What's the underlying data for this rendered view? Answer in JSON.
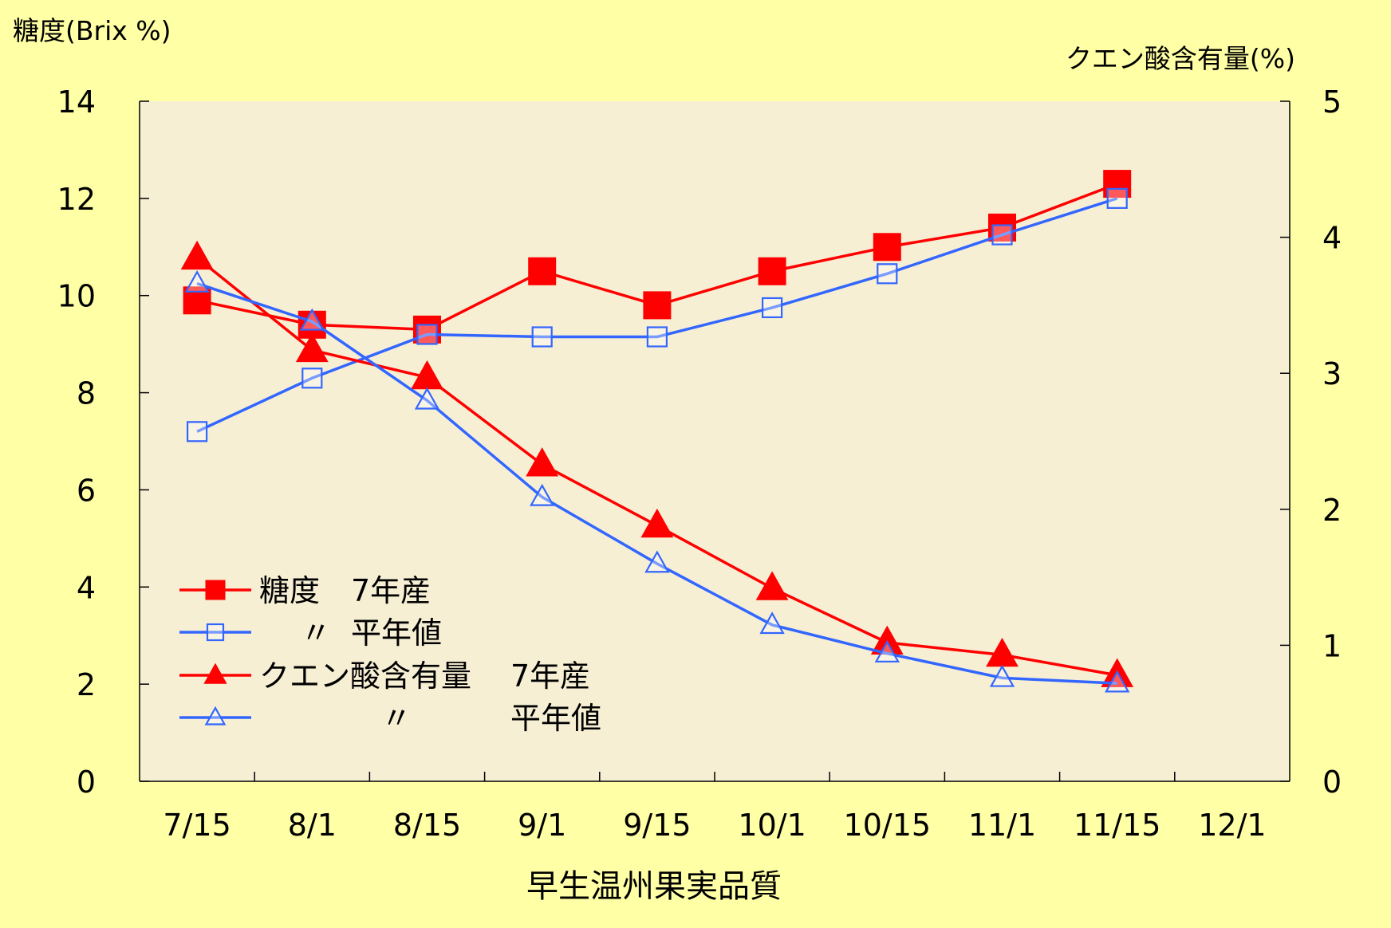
{
  "chart_data": {
    "type": "line",
    "title": "早生温州果実品質",
    "left_axis": {
      "label": "糖度(Brix %)",
      "ticks": [
        "0",
        "2",
        "4",
        "6",
        "8",
        "10",
        "12",
        "14"
      ],
      "ylim": [
        0,
        14
      ]
    },
    "right_axis": {
      "label": "クエン酸含有量(%)",
      "ticks": [
        "0",
        "1",
        "2",
        "3",
        "4",
        "5"
      ],
      "ylim": [
        0,
        5
      ]
    },
    "categories": [
      "7/15",
      "8/1",
      "8/15",
      "9/1",
      "9/15",
      "10/1",
      "10/15",
      "11/1",
      "11/15",
      "12/1"
    ],
    "series": [
      {
        "name": "糖度 7年産",
        "legend": {
          "name": "糖度",
          "suffix": "7年産"
        },
        "axis": "left",
        "marker": "square-filled",
        "color": "#ff0000",
        "values": [
          9.9,
          9.4,
          9.3,
          10.5,
          9.8,
          10.5,
          11.0,
          11.4,
          12.3,
          null
        ]
      },
      {
        "name": "〃 平年値",
        "legend": {
          "name": "〃",
          "suffix": "平年値"
        },
        "axis": "left",
        "marker": "square-open",
        "color": "#3366ff",
        "values": [
          7.2,
          8.3,
          9.2,
          9.15,
          9.15,
          9.75,
          10.45,
          11.25,
          12.0,
          null
        ]
      },
      {
        "name": "クエン酸含有量 7年産",
        "legend": {
          "name": "クエン酸含有量",
          "suffix": "7年産"
        },
        "axis": "right",
        "marker": "triangle-filled",
        "color": "#ff0000",
        "values": [
          3.85,
          3.17,
          2.97,
          2.33,
          1.88,
          1.42,
          1.02,
          0.93,
          0.78,
          null
        ]
      },
      {
        "name": "〃 平年値",
        "legend": {
          "name": "〃",
          "suffix": "平年値"
        },
        "axis": "right",
        "marker": "triangle-open",
        "color": "#3366ff",
        "values": [
          3.66,
          3.38,
          2.8,
          2.09,
          1.6,
          1.15,
          0.94,
          0.76,
          0.72,
          null
        ]
      }
    ],
    "grid": false,
    "legend_position": "bottom-left",
    "colors": {
      "background": "#ffffa6",
      "plot_area": "#f6efd4",
      "red": "#ff0000",
      "blue": "#3366ff"
    }
  }
}
